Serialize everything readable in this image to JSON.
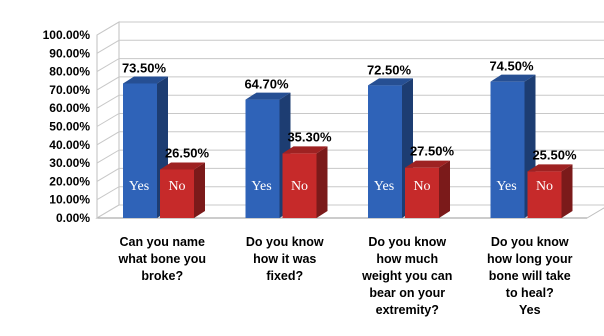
{
  "chart_data": {
    "type": "bar",
    "title": "",
    "xlabel": "",
    "ylabel": "",
    "ylim": [
      0,
      100
    ],
    "y_ticks": [
      "0.00%",
      "10.00%",
      "20.00%",
      "30.00%",
      "40.00%",
      "50.00%",
      "60.00%",
      "70.00%",
      "80.00%",
      "90.00%",
      "100.00%"
    ],
    "grid": true,
    "three_d": true,
    "categories": [
      [
        "Can you name",
        "what bone you",
        "broke?"
      ],
      [
        "Do you know",
        "how it was",
        "fixed?"
      ],
      [
        "Do you know",
        "how much",
        "weight you can",
        "bear on your",
        "extremity?"
      ],
      [
        "Do you know",
        "how long your",
        "bone will take",
        "to heal?",
        "Yes"
      ]
    ],
    "series": [
      {
        "name": "Yes",
        "color": "#2f63b8",
        "values": [
          73.5,
          64.7,
          72.5,
          74.5
        ],
        "labels": [
          "73.50%",
          "64.70%",
          "72.50%",
          "74.50%"
        ]
      },
      {
        "name": "No",
        "color": "#c62a2a",
        "values": [
          26.5,
          35.3,
          27.5,
          25.5
        ],
        "labels": [
          "26.50%",
          "35.30%",
          "27.50%",
          "25.50%"
        ]
      }
    ]
  }
}
